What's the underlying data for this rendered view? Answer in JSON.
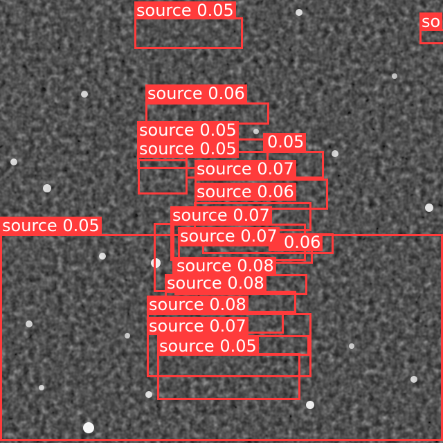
{
  "style": {
    "box_color": "#ff3b3b",
    "label_text_color": "#ffffff",
    "background": "grayscale noise field with bright point sources"
  },
  "detections": [
    {
      "label": "source",
      "score": "0.05"
    },
    {
      "label": "so",
      "score": ""
    },
    {
      "label": "source",
      "score": "0.06"
    },
    {
      "label": "source",
      "score": "0.05"
    },
    {
      "label": "source",
      "score": "0.05"
    },
    {
      "label": "",
      "score": "0.05"
    },
    {
      "label": "source",
      "score": "0.07"
    },
    {
      "label": "source",
      "score": "0.06"
    },
    {
      "label": "source",
      "score": "0.07"
    },
    {
      "label": "source",
      "score": "0.05"
    },
    {
      "label": "source",
      "score": "0.07"
    },
    {
      "label": "",
      "score": "0.06"
    },
    {
      "label": "source",
      "score": "0.08"
    },
    {
      "label": "source",
      "score": "0.08"
    },
    {
      "label": "source",
      "score": "0.08"
    },
    {
      "label": "source",
      "score": "0.07"
    },
    {
      "label": "source",
      "score": "0.05"
    }
  ]
}
